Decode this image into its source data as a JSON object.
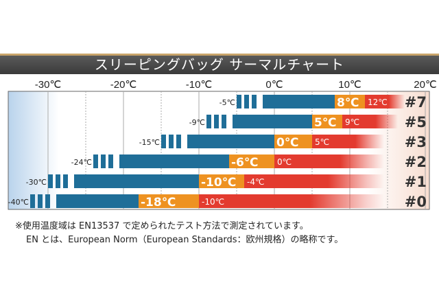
{
  "chart_data": {
    "type": "bar",
    "title": "スリーピングバッグ サーマルチャート",
    "xlim": [
      -30,
      20
    ],
    "x_ticks": [
      "-30℃",
      "-20℃",
      "-10℃",
      "0℃",
      "10℃",
      "20℃"
    ],
    "x_tick_values": [
      -30,
      -20,
      -10,
      0,
      10,
      20
    ],
    "grid": "on",
    "series": [
      {
        "name": "#7",
        "extreme": -5,
        "comfort_low": 8,
        "comfort_high": 12,
        "labels": [
          "-5℃",
          "8℃",
          "12℃"
        ]
      },
      {
        "name": "#5",
        "extreme": -9,
        "comfort_low": 5,
        "comfort_high": 9,
        "labels": [
          "-9℃",
          "5℃",
          "9℃"
        ]
      },
      {
        "name": "#3",
        "extreme": -15,
        "comfort_low": 0,
        "comfort_high": 5,
        "labels": [
          "-15℃",
          "0℃",
          "5℃"
        ]
      },
      {
        "name": "#2",
        "extreme": -24,
        "comfort_low": -6,
        "comfort_high": 0,
        "labels": [
          "-24℃",
          "-6℃",
          "0℃"
        ]
      },
      {
        "name": "#1",
        "extreme": -30,
        "comfort_low": -10,
        "comfort_high": -4,
        "labels": [
          "-30℃",
          "-10℃",
          "-4℃"
        ]
      },
      {
        "name": "#0",
        "extreme": -40,
        "comfort_low": -18,
        "comfort_high": -10,
        "labels": [
          "-40℃",
          "-18℃",
          "-10℃"
        ]
      }
    ],
    "colors": {
      "blue": "#1f6e98",
      "orange": "#ee9221",
      "red": "#e33b2f",
      "header": "#444444"
    }
  },
  "notes": [
    "※使用温度域は EN13537 で定められたテスト方法で測定されています。",
    "EN とは、European Norm（European Standards：欧州規格）の略称です。"
  ]
}
